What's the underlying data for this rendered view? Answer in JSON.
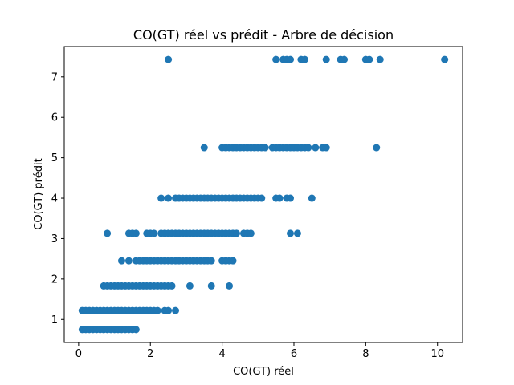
{
  "chart_data": {
    "type": "scatter",
    "title": "CO(GT) réel vs prédit - Arbre de décision",
    "xlabel": "CO(GT) réel",
    "ylabel": "CO(GT) prédit",
    "xlim": [
      -0.4,
      10.7
    ],
    "ylim": [
      0.43,
      7.75
    ],
    "xticks": [
      0,
      2,
      4,
      6,
      8,
      10
    ],
    "yticks": [
      1,
      2,
      3,
      4,
      5,
      6,
      7
    ],
    "color": "#1f77b4",
    "grid": false,
    "levels": [
      {
        "y": 0.75,
        "x": [
          0.1,
          0.2,
          0.3,
          0.4,
          0.5,
          0.6,
          0.7,
          0.8,
          0.9,
          1.0,
          1.1,
          1.2,
          1.3,
          1.4,
          1.5,
          1.6
        ]
      },
      {
        "y": 1.22,
        "x": [
          0.1,
          0.2,
          0.3,
          0.4,
          0.5,
          0.6,
          0.7,
          0.8,
          0.9,
          1.0,
          1.1,
          1.2,
          1.3,
          1.4,
          1.5,
          1.6,
          1.7,
          1.8,
          1.9,
          2.0,
          2.1,
          2.2,
          2.4,
          2.5,
          2.7
        ]
      },
      {
        "y": 1.83,
        "x": [
          0.7,
          0.8,
          0.9,
          1.0,
          1.1,
          1.2,
          1.3,
          1.4,
          1.5,
          1.6,
          1.7,
          1.8,
          1.9,
          2.0,
          2.1,
          2.2,
          2.3,
          2.4,
          2.5,
          2.6,
          3.1,
          3.7,
          4.2
        ]
      },
      {
        "y": 2.45,
        "x": [
          1.2,
          1.4,
          1.6,
          1.7,
          1.8,
          1.9,
          2.0,
          2.1,
          2.2,
          2.3,
          2.4,
          2.5,
          2.6,
          2.7,
          2.8,
          2.9,
          3.0,
          3.1,
          3.2,
          3.3,
          3.4,
          3.5,
          3.6,
          3.7,
          4.0,
          4.1,
          4.2,
          4.3
        ]
      },
      {
        "y": 3.13,
        "x": [
          0.8,
          1.4,
          1.5,
          1.6,
          1.9,
          2.0,
          2.1,
          2.3,
          2.4,
          2.5,
          2.6,
          2.7,
          2.8,
          2.9,
          3.0,
          3.1,
          3.2,
          3.3,
          3.4,
          3.5,
          3.6,
          3.7,
          3.8,
          3.9,
          4.0,
          4.1,
          4.2,
          4.3,
          4.4,
          4.6,
          4.7,
          4.8,
          5.9,
          6.1
        ]
      },
      {
        "y": 4.0,
        "x": [
          2.3,
          2.5,
          2.7,
          2.8,
          2.9,
          3.0,
          3.1,
          3.2,
          3.3,
          3.4,
          3.5,
          3.6,
          3.7,
          3.8,
          3.9,
          4.0,
          4.1,
          4.2,
          4.3,
          4.4,
          4.5,
          4.6,
          4.7,
          4.8,
          4.9,
          5.0,
          5.1,
          5.5,
          5.6,
          5.8,
          5.9,
          6.5
        ]
      },
      {
        "y": 5.25,
        "x": [
          3.5,
          4.0,
          4.1,
          4.2,
          4.3,
          4.4,
          4.5,
          4.6,
          4.7,
          4.8,
          4.9,
          5.0,
          5.1,
          5.2,
          5.4,
          5.5,
          5.6,
          5.7,
          5.8,
          5.9,
          6.0,
          6.1,
          6.2,
          6.3,
          6.4,
          6.6,
          6.8,
          6.9,
          8.3
        ]
      },
      {
        "y": 7.43,
        "x": [
          2.5,
          5.5,
          5.7,
          5.8,
          5.9,
          6.2,
          6.3,
          6.9,
          7.3,
          7.4,
          8.0,
          8.1,
          8.4,
          10.2
        ]
      }
    ]
  }
}
